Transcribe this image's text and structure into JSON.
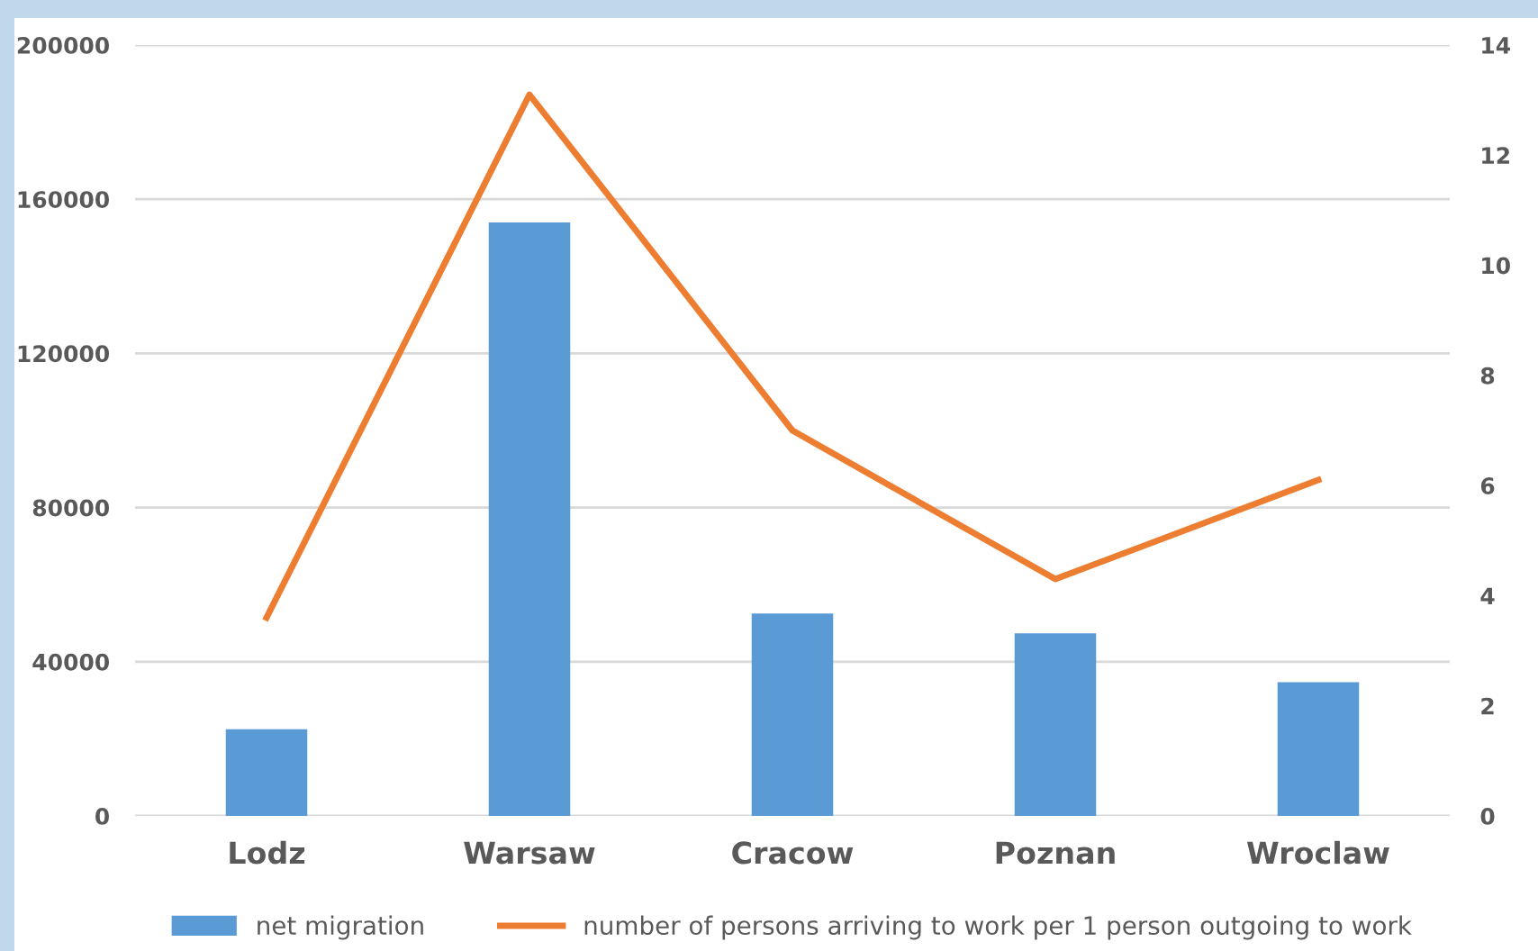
{
  "chart_data": {
    "type": "bar",
    "categories": [
      "Lodz",
      "Warsaw",
      "Cracow",
      "Poznan",
      "Wroclaw"
    ],
    "series": [
      {
        "name": "net migration",
        "color": "#5b9bd5",
        "values": [
          22500,
          154000,
          52500,
          47400,
          34700
        ]
      },
      {
        "name": "number of persons arriving to work per 1 person outgoing to work",
        "type": "line",
        "axis": "y2",
        "color": "#ed7d31",
        "values": [
          3.6,
          13.1,
          7.0,
          4.3,
          6.1
        ]
      }
    ],
    "ylim": [
      0,
      200000
    ],
    "yticks": [
      0,
      40000,
      80000,
      120000,
      160000,
      200000
    ],
    "y2lim": [
      0,
      14
    ],
    "y2ticks": [
      0,
      2,
      4,
      6,
      8,
      10,
      12,
      14
    ],
    "grid": "y",
    "legend": "bottom",
    "marker": "none",
    "line_style": "solid"
  }
}
